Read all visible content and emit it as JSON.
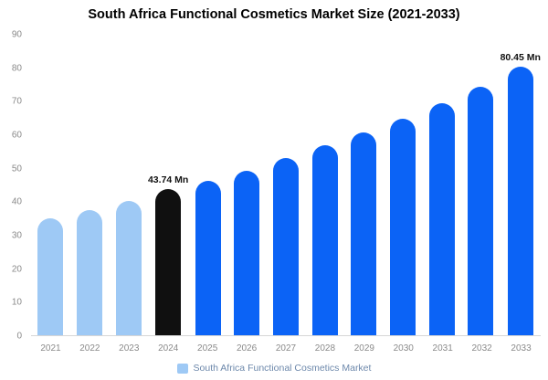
{
  "chart_data": {
    "type": "bar",
    "title": "South Africa Functional Cosmetics Market Size (2021-2033)",
    "xlabel": "",
    "ylabel": "",
    "categories": [
      "2021",
      "2022",
      "2023",
      "2024",
      "2025",
      "2026",
      "2027",
      "2028",
      "2029",
      "2030",
      "2031",
      "2032",
      "2033"
    ],
    "values": [
      35,
      37.5,
      40.3,
      43.74,
      46.2,
      49.3,
      53,
      56.8,
      60.8,
      64.8,
      69.4,
      74.4,
      80.45
    ],
    "bar_colors": [
      "#9ec9f5",
      "#9ec9f5",
      "#9ec9f5",
      "#101010",
      "#0b63f6",
      "#0b63f6",
      "#0b63f6",
      "#0b63f6",
      "#0b63f6",
      "#0b63f6",
      "#0b63f6",
      "#0b63f6",
      "#0b63f6"
    ],
    "annotations": [
      {
        "index": 3,
        "text": "43.74 Mn"
      },
      {
        "index": 12,
        "text": "80.45 Mn"
      }
    ],
    "ylim": [
      0,
      90
    ],
    "yticks": [
      0,
      10,
      20,
      30,
      40,
      50,
      60,
      70,
      80,
      90
    ],
    "grid": false,
    "legend": {
      "position": "bottom",
      "label": "South Africa Functional Cosmetics Market",
      "swatch_color": "#9ec9f5",
      "text_color": "#6d88ab"
    }
  }
}
